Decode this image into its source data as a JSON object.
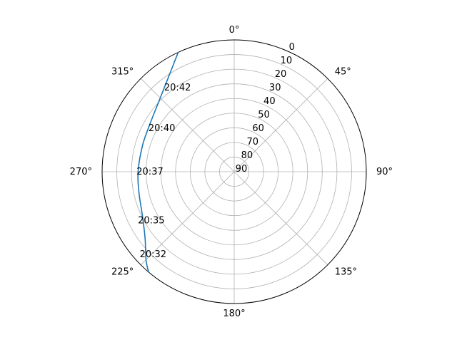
{
  "chart_data": {
    "type": "line",
    "projection": "polar",
    "theta_zero_location": "N",
    "theta_direction": "clockwise",
    "radial_axis": {
      "quantity": "elevation",
      "inverted": true,
      "range": [
        90,
        0
      ]
    },
    "angle_ticks": [
      {
        "deg": 0,
        "label": "0°"
      },
      {
        "deg": 45,
        "label": "45°"
      },
      {
        "deg": 90,
        "label": "90°"
      },
      {
        "deg": 135,
        "label": "135°"
      },
      {
        "deg": 180,
        "label": "180°"
      },
      {
        "deg": 225,
        "label": "225°"
      },
      {
        "deg": 270,
        "label": "270°"
      },
      {
        "deg": 315,
        "label": "315°"
      }
    ],
    "radial_ticks": [
      {
        "value": 0,
        "label": "0"
      },
      {
        "value": 10,
        "label": "10"
      },
      {
        "value": 20,
        "label": "20"
      },
      {
        "value": 30,
        "label": "30"
      },
      {
        "value": 40,
        "label": "40"
      },
      {
        "value": 50,
        "label": "50"
      },
      {
        "value": 60,
        "label": "60"
      },
      {
        "value": 70,
        "label": "70"
      },
      {
        "value": 80,
        "label": "80"
      },
      {
        "value": 90,
        "label": "90"
      }
    ],
    "grid": true,
    "series": [
      {
        "color": "#1f77b4",
        "points": [
          {
            "azimuth": 334.9,
            "elevation": 0
          },
          {
            "azimuth": 324.6,
            "elevation": 12
          },
          {
            "azimuth": 312.5,
            "elevation": 20
          },
          {
            "azimuth": 299.5,
            "elevation": 24
          },
          {
            "azimuth": 286.3,
            "elevation": 25
          },
          {
            "azimuth": 270.0,
            "elevation": 24.5
          },
          {
            "azimuth": 257.2,
            "elevation": 23.5
          },
          {
            "azimuth": 244.0,
            "elevation": 20.5
          },
          {
            "azimuth": 233.0,
            "elevation": 14
          },
          {
            "azimuth": 225.0,
            "elevation": 5
          },
          {
            "azimuth": 220.2,
            "elevation": -0.2
          }
        ]
      }
    ],
    "annotations": [
      {
        "text": "20:42",
        "azimuth": 320.0,
        "elevation": 15
      },
      {
        "text": "20:40",
        "azimuth": 296.8,
        "elevation": 24
      },
      {
        "text": "20:37",
        "azimuth": 270.0,
        "elevation": 23
      },
      {
        "text": "20:35",
        "azimuth": 243.3,
        "elevation": 16
      },
      {
        "text": "20:32",
        "azimuth": 229.0,
        "elevation": 4
      }
    ]
  }
}
